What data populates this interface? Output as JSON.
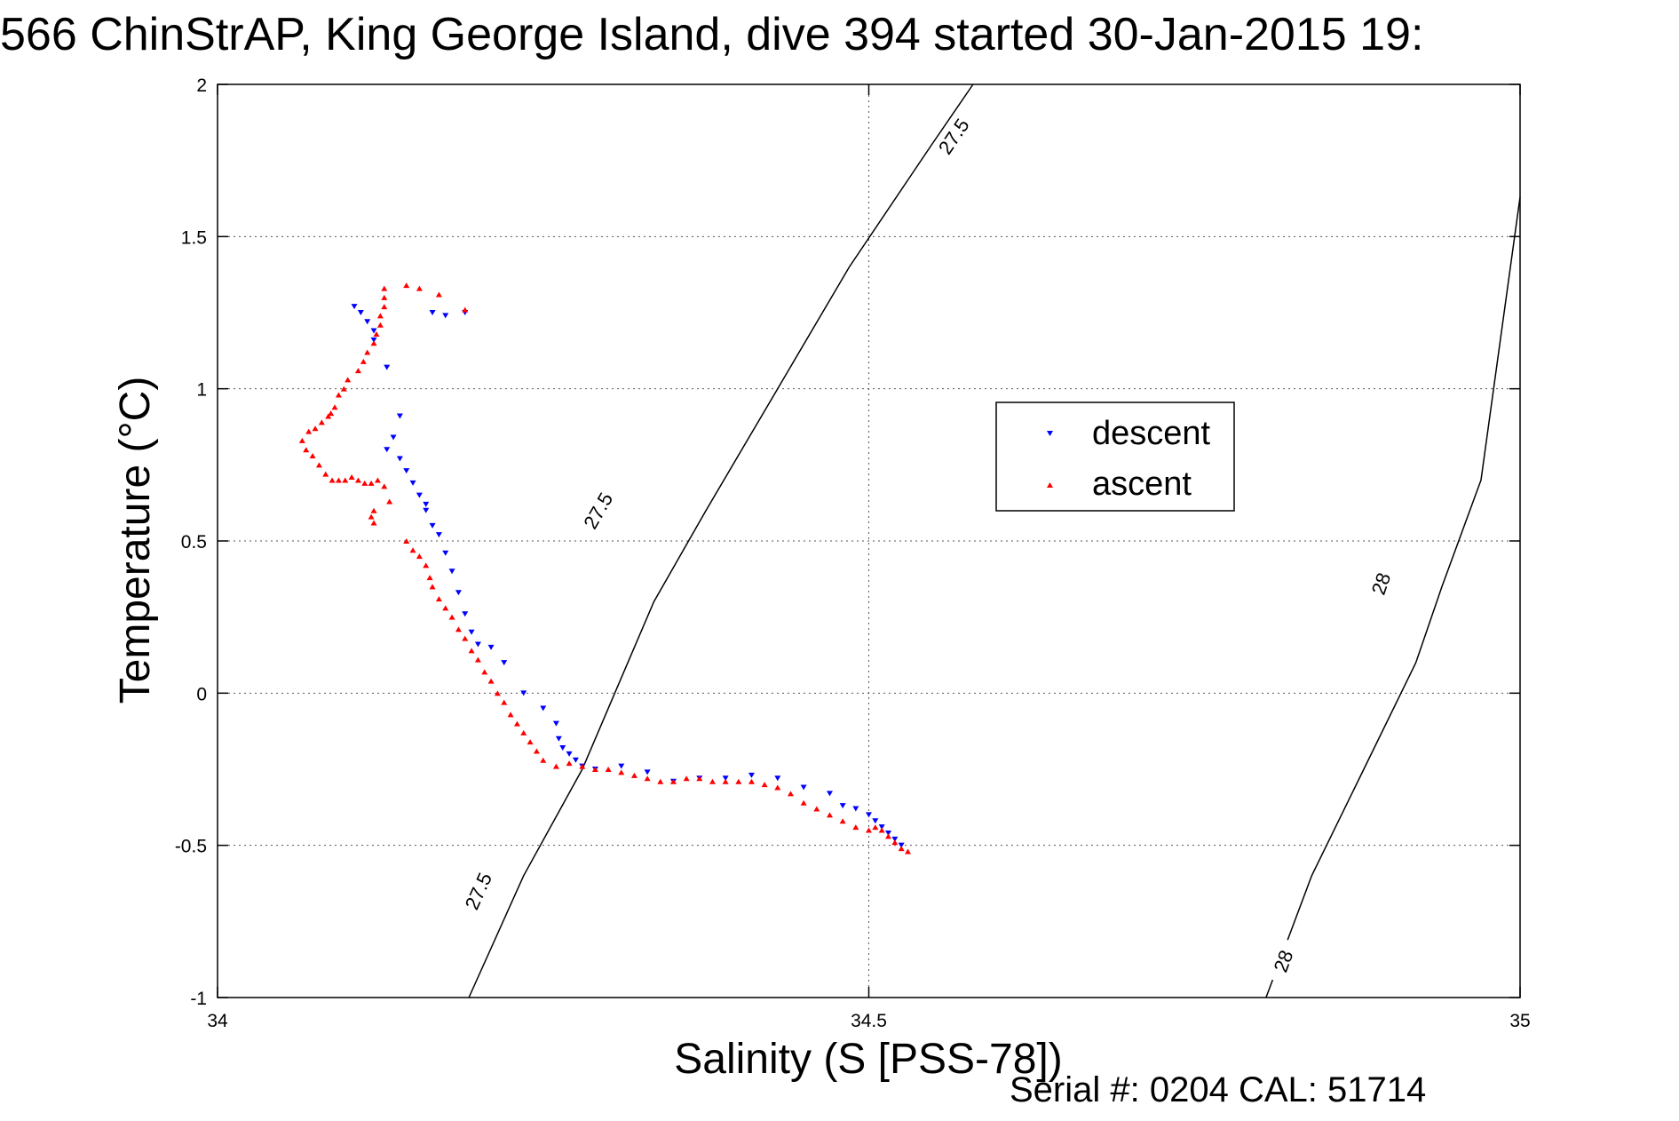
{
  "chart_data": {
    "type": "scatter",
    "title": "566 ChinStrAP, King George Island, dive 394 started 30-Jan-2015 19:",
    "xlabel": "Salinity (S [PSS-78])",
    "ylabel": "Temperature (°C)",
    "xlim": [
      34,
      35
    ],
    "ylim": [
      -1,
      2
    ],
    "xticks": [
      "34",
      "34.5",
      "35"
    ],
    "yticks": [
      "-1",
      "-0.5",
      "0",
      "0.5",
      "1",
      "1.5",
      "2"
    ],
    "grid": true,
    "legend_position": "center-right",
    "footer": "Serial #: 0204  CAL: 51714",
    "contours": [
      {
        "label": "27.5",
        "points": [
          [
            34.193,
            -1.0
          ],
          [
            34.235,
            -0.6
          ],
          [
            34.28,
            -0.25
          ],
          [
            34.305,
            0.0
          ],
          [
            34.335,
            0.3
          ],
          [
            34.375,
            0.6
          ],
          [
            34.43,
            1.0
          ],
          [
            34.485,
            1.4
          ],
          [
            34.548,
            1.8
          ],
          [
            34.58,
            2.0
          ]
        ],
        "label_positions": [
          [
            34.2,
            -0.65
          ],
          [
            34.292,
            0.6
          ],
          [
            34.565,
            1.83
          ]
        ]
      },
      {
        "label": "28",
        "points": [
          [
            34.805,
            -1.0
          ],
          [
            34.84,
            -0.6
          ],
          [
            34.88,
            -0.25
          ],
          [
            34.92,
            0.1
          ],
          [
            34.94,
            0.35
          ],
          [
            34.97,
            0.7
          ],
          [
            35.0,
            1.63
          ]
        ],
        "label_positions": [
          [
            34.818,
            -0.88
          ],
          [
            34.893,
            0.36
          ]
        ]
      }
    ],
    "series": [
      {
        "name": "descent",
        "color": "#0000ff",
        "marker": "triangle-down",
        "x": [
          34.165,
          34.175,
          34.19,
          34.105,
          34.11,
          34.115,
          34.12,
          34.12,
          34.13,
          34.14,
          34.135,
          34.13,
          34.14,
          34.145,
          34.15,
          34.155,
          34.16,
          34.16,
          34.165,
          34.17,
          34.175,
          34.18,
          34.185,
          34.19,
          34.195,
          34.2,
          34.21,
          34.22,
          34.235,
          34.25,
          34.26,
          34.262,
          34.265,
          34.27,
          34.275,
          34.28,
          34.29,
          34.31,
          34.33,
          34.35,
          34.37,
          34.39,
          34.41,
          34.43,
          34.45,
          34.47,
          34.48,
          34.49,
          34.5,
          34.505,
          34.51,
          34.515,
          34.52,
          34.525
        ],
        "y": [
          1.25,
          1.24,
          1.25,
          1.27,
          1.25,
          1.22,
          1.19,
          1.16,
          1.07,
          0.91,
          0.84,
          0.8,
          0.77,
          0.73,
          0.69,
          0.65,
          0.62,
          0.6,
          0.55,
          0.52,
          0.46,
          0.4,
          0.33,
          0.26,
          0.2,
          0.16,
          0.15,
          0.1,
          0.0,
          -0.05,
          -0.1,
          -0.15,
          -0.18,
          -0.2,
          -0.22,
          -0.24,
          -0.25,
          -0.24,
          -0.26,
          -0.29,
          -0.28,
          -0.28,
          -0.27,
          -0.28,
          -0.31,
          -0.33,
          -0.37,
          -0.38,
          -0.4,
          -0.42,
          -0.44,
          -0.46,
          -0.48,
          -0.5
        ]
      },
      {
        "name": "ascent",
        "color": "#ff0000",
        "marker": "triangle-up",
        "x": [
          34.19,
          34.17,
          34.155,
          34.145,
          34.128,
          34.128,
          34.128,
          34.125,
          34.125,
          34.122,
          34.12,
          34.115,
          34.112,
          34.108,
          34.1,
          34.097,
          34.093,
          34.09,
          34.087,
          34.085,
          34.08,
          34.075,
          34.07,
          34.065,
          34.068,
          34.073,
          34.078,
          34.083,
          34.088,
          34.093,
          34.098,
          34.103,
          34.108,
          34.113,
          34.118,
          34.123,
          34.128,
          34.132,
          34.12,
          34.118,
          34.12,
          34.145,
          34.15,
          34.155,
          34.16,
          34.163,
          34.165,
          34.17,
          34.175,
          34.18,
          34.185,
          34.19,
          34.195,
          34.2,
          34.205,
          34.21,
          34.215,
          34.22,
          34.225,
          34.23,
          34.235,
          34.24,
          34.245,
          34.25,
          34.26,
          34.27,
          34.28,
          34.29,
          34.3,
          34.31,
          34.32,
          34.33,
          34.34,
          34.35,
          34.36,
          34.37,
          34.38,
          34.39,
          34.4,
          34.41,
          34.42,
          34.43,
          34.44,
          34.45,
          34.46,
          34.47,
          34.48,
          34.49,
          34.5,
          34.505,
          34.51,
          34.515,
          34.52,
          34.525,
          34.53
        ],
        "y": [
          1.26,
          1.31,
          1.33,
          1.34,
          1.33,
          1.3,
          1.27,
          1.24,
          1.21,
          1.18,
          1.15,
          1.12,
          1.09,
          1.06,
          1.03,
          1.0,
          0.98,
          0.94,
          0.92,
          0.91,
          0.89,
          0.87,
          0.86,
          0.83,
          0.8,
          0.78,
          0.75,
          0.72,
          0.7,
          0.7,
          0.7,
          0.71,
          0.7,
          0.69,
          0.69,
          0.7,
          0.68,
          0.63,
          0.6,
          0.58,
          0.56,
          0.5,
          0.47,
          0.45,
          0.42,
          0.38,
          0.35,
          0.31,
          0.28,
          0.25,
          0.21,
          0.18,
          0.14,
          0.11,
          0.07,
          0.04,
          0.0,
          -0.03,
          -0.07,
          -0.1,
          -0.13,
          -0.16,
          -0.19,
          -0.22,
          -0.24,
          -0.23,
          -0.24,
          -0.25,
          -0.25,
          -0.26,
          -0.27,
          -0.28,
          -0.29,
          -0.29,
          -0.28,
          -0.28,
          -0.29,
          -0.29,
          -0.29,
          -0.29,
          -0.3,
          -0.31,
          -0.33,
          -0.36,
          -0.38,
          -0.4,
          -0.42,
          -0.44,
          -0.45,
          -0.44,
          -0.45,
          -0.47,
          -0.49,
          -0.51,
          -0.52
        ]
      }
    ]
  }
}
